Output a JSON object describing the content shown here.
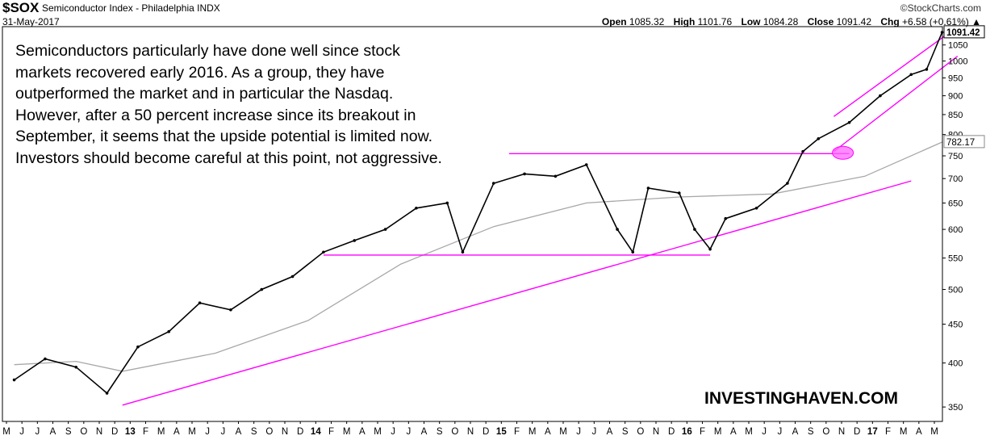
{
  "header": {
    "ticker": "$SOX",
    "name": "Semiconductor Index - Philadelphia INDX",
    "date": "31-May-2017",
    "brand": "©StockCharts.com",
    "open_label": "Open",
    "open": "1085.32",
    "high_label": "High",
    "high": "1101.76",
    "low_label": "Low",
    "low": "1084.28",
    "close_label": "Close",
    "close": "1091.42",
    "chg_label": "Chg",
    "chg": "+6.58 (+0.61%)",
    "chg_arrow": "▲"
  },
  "annotation": "Semiconductors particularly have done well since stock markets recovered early 2016. As a group, they have outperformed the market and in particular the Nasdaq. However, after a 50 percent increase since its breakout in September, it seems that the upside potential is limited now. Investors should become careful at this point, not aggressive.",
  "watermark": "INVESTINGHAVEN.COM",
  "colors": {
    "price": "#000000",
    "ma": "#a8a8a8",
    "trend": "#ff00ff",
    "highlight": "#ff66ff",
    "grid_axis": "#000000"
  },
  "chart_data": {
    "type": "line",
    "scale": "log",
    "ylim": [
      335,
      1110
    ],
    "y_ticks": [
      350,
      400,
      450,
      500,
      550,
      600,
      650,
      700,
      750,
      800,
      850,
      900,
      950,
      1000,
      1050
    ],
    "price_labels": [
      "1091.42",
      "782.17"
    ],
    "x_ticks": [
      "M",
      "J",
      "J",
      "A",
      "S",
      "O",
      "N",
      "D",
      "13",
      "F",
      "M",
      "A",
      "M",
      "J",
      "J",
      "A",
      "S",
      "O",
      "N",
      "D",
      "14",
      "F",
      "M",
      "A",
      "M",
      "J",
      "J",
      "A",
      "S",
      "O",
      "N",
      "D",
      "15",
      "F",
      "M",
      "A",
      "M",
      "J",
      "J",
      "A",
      "S",
      "O",
      "N",
      "D",
      "16",
      "F",
      "M",
      "A",
      "M",
      "J",
      "J",
      "A",
      "S",
      "O",
      "N",
      "D",
      "17",
      "F",
      "M",
      "A",
      "M"
    ],
    "bold_ticks": [
      "13",
      "14",
      "15",
      "16",
      "17"
    ],
    "series": [
      {
        "x": [
          "2012-05",
          "2012-07",
          "2012-09",
          "2012-11",
          "2013-01",
          "2013-03",
          "2013-05",
          "2013-07",
          "2013-09",
          "2013-11",
          "2014-01",
          "2014-03",
          "2014-05",
          "2014-07",
          "2014-09",
          "2014-10",
          "2014-12",
          "2015-02",
          "2015-04",
          "2015-06",
          "2015-08",
          "2015-09",
          "2015-10",
          "2015-12",
          "2016-01",
          "2016-02",
          "2016-03",
          "2016-05",
          "2016-07",
          "2016-08",
          "2016-09",
          "2016-11",
          "2017-01",
          "2017-03",
          "2017-04",
          "2017-05"
        ],
        "values": [
          380,
          405,
          395,
          365,
          420,
          440,
          480,
          470,
          500,
          520,
          560,
          580,
          600,
          640,
          650,
          560,
          690,
          710,
          705,
          730,
          600,
          560,
          680,
          670,
          600,
          565,
          620,
          640,
          690,
          760,
          790,
          830,
          900,
          960,
          975,
          1091
        ]
      },
      {
        "x": [
          "2012-05",
          "2012-09",
          "2012-12",
          "2013-06",
          "2013-12",
          "2014-06",
          "2014-12",
          "2015-06",
          "2015-12",
          "2016-06",
          "2016-12",
          "2017-05"
        ],
        "values": [
          398,
          402,
          390,
          412,
          455,
          540,
          605,
          650,
          662,
          668,
          705,
          782
        ]
      }
    ],
    "annotations": [
      {
        "from": [
          "2012-12",
          352
        ],
        "to": [
          "2017-03",
          695
        ]
      },
      {
        "from": [
          "2014-01",
          555
        ],
        "to": [
          "2016-02",
          555
        ]
      },
      {
        "from": [
          "2015-01",
          755
        ],
        "to": [
          "2016-11",
          755
        ]
      },
      {
        "from": [
          "2016-10",
          845
        ],
        "to": [
          "2017-06",
          1110
        ]
      },
      {
        "from": [
          "2016-10",
          760
        ],
        "to": [
          "2017-06",
          1015
        ]
      }
    ]
  }
}
